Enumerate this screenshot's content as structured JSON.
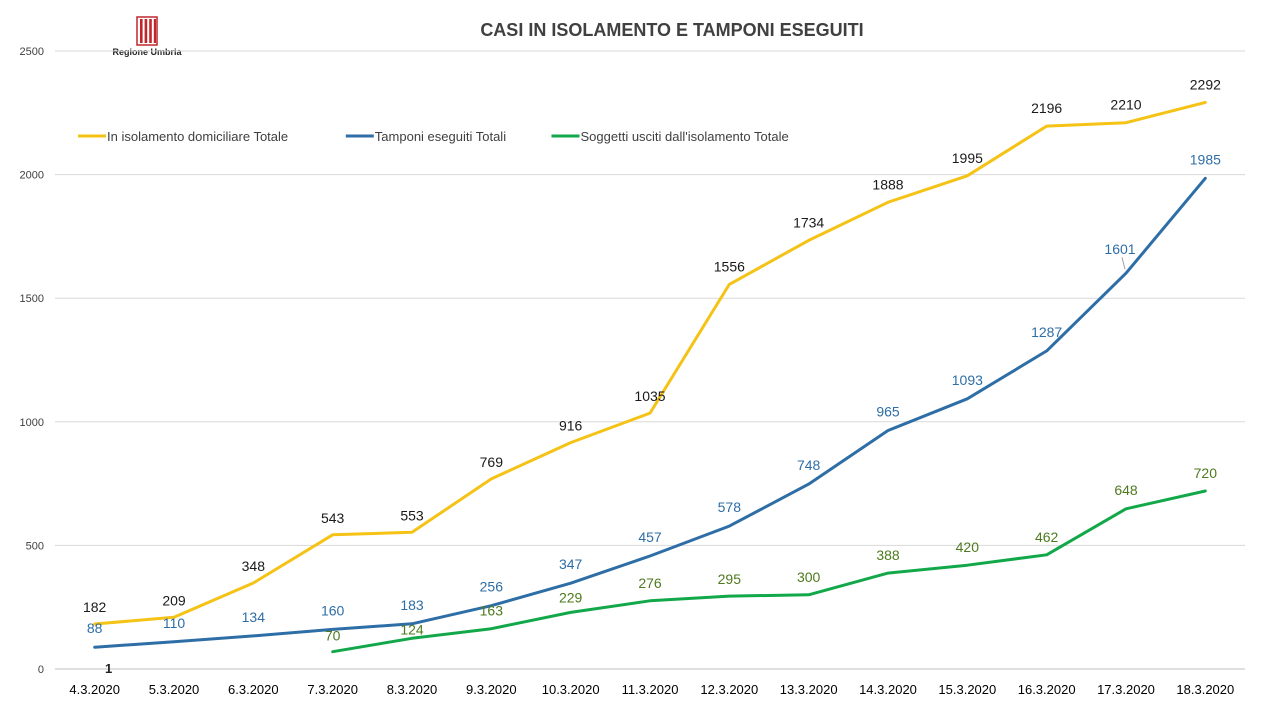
{
  "logo": {
    "text": "Regione Umbria",
    "icon": "regione-umbria-coat-of-arms-icon",
    "color": "#c0272d"
  },
  "chart_data": {
    "type": "line",
    "title": "CASI IN ISOLAMENTO E TAMPONI ESEGUITI",
    "xlabel": "",
    "ylabel": "",
    "ylim": [
      0,
      2500
    ],
    "yticks": [
      0,
      500,
      1000,
      1500,
      2000,
      2500
    ],
    "grid": true,
    "legend_position": "top-left",
    "categories": [
      "4.3.2020",
      "5.3.2020",
      "6.3.2020",
      "7.3.2020",
      "8.3.2020",
      "9.3.2020",
      "10.3.2020",
      "11.3.2020",
      "12.3.2020",
      "13.3.2020",
      "14.3.2020",
      "15.3.2020",
      "16.3.2020",
      "17.3.2020",
      "18.3.2020"
    ],
    "series": [
      {
        "name": "In isolamento domiciliare Totale",
        "color": "#f5c216",
        "label_color": "#1a1a1a",
        "values": [
          182,
          209,
          348,
          543,
          553,
          769,
          916,
          1035,
          1556,
          1734,
          1888,
          1995,
          2196,
          2210,
          2292
        ]
      },
      {
        "name": "Tamponi eseguiti Totali",
        "color": "#2e6ea6",
        "label_color": "#2e6ea6",
        "values": [
          88,
          110,
          134,
          160,
          183,
          256,
          347,
          457,
          578,
          748,
          965,
          1093,
          1287,
          1601,
          1985
        ]
      },
      {
        "name": "Soggetti usciti dall'isolamento Totale",
        "color": "#12a84a",
        "label_color": "#4e7a1e",
        "values": [
          null,
          null,
          null,
          70,
          124,
          163,
          229,
          276,
          295,
          300,
          388,
          420,
          462,
          648,
          720
        ]
      }
    ],
    "annotations": [
      {
        "text": "1",
        "category": "4.3.2020"
      }
    ]
  }
}
